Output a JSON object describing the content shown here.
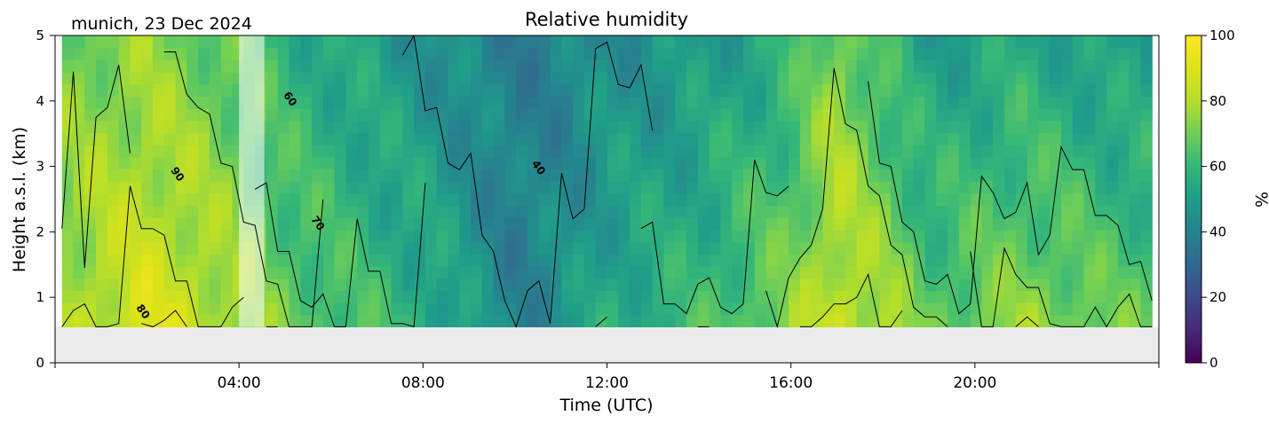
{
  "chart_data": {
    "type": "heatmap",
    "title": "Relative humidity",
    "subtitle": "munich, 23 Dec 2024",
    "xlabel": "Time (UTC)",
    "ylabel": "Height a.s.l. (km)",
    "colorbar_label": "%",
    "x_unit": "hours UTC",
    "xlim": [
      0,
      24
    ],
    "ylim": [
      0,
      5
    ],
    "x_ticks": [
      4,
      8,
      12,
      16,
      20
    ],
    "x_tick_labels": [
      "04:00",
      "08:00",
      "12:00",
      "16:00",
      "20:00"
    ],
    "y_ticks": [
      0,
      1,
      2,
      3,
      4,
      5
    ],
    "y_tick_labels": [
      "0",
      "1",
      "2",
      "3",
      "4",
      "5"
    ],
    "colorbar_ticks": [
      0,
      20,
      40,
      60,
      80,
      100
    ],
    "colorbar_tick_labels": [
      "0",
      "20",
      "40",
      "60",
      "80",
      "100"
    ],
    "colorbar_range": [
      0,
      100
    ],
    "colormap": "viridis",
    "no_data_color": "#ebebeb",
    "data_bottom_km": 0.55,
    "data_start_hour": 0.15,
    "data_end_hour": 23.85,
    "masked_interval_hours": [
      4.0,
      4.55
    ],
    "contour_levels": [
      40,
      60,
      70,
      80,
      90
    ],
    "contour_labels": [
      {
        "text": "90",
        "hour": 2.6,
        "km": 2.85
      },
      {
        "text": "80",
        "hour": 1.85,
        "km": 0.75
      },
      {
        "text": "60",
        "hour": 5.05,
        "km": 4.0
      },
      {
        "text": "70",
        "hour": 5.65,
        "km": 2.1
      },
      {
        "text": "40",
        "hour": 10.45,
        "km": 2.95
      }
    ],
    "humidity_profile": {
      "hours": [
        0,
        1,
        2,
        3,
        4,
        5,
        6,
        7,
        8,
        9,
        10,
        11,
        12,
        13,
        14,
        15,
        16,
        17,
        18,
        19,
        20,
        21,
        22,
        23,
        24
      ],
      "low_km": [
        78,
        84,
        90,
        86,
        78,
        70,
        66,
        62,
        58,
        50,
        40,
        46,
        56,
        58,
        62,
        68,
        74,
        86,
        80,
        68,
        72,
        76,
        74,
        70,
        68
      ],
      "high_km": [
        70,
        72,
        74,
        70,
        66,
        58,
        54,
        50,
        46,
        42,
        38,
        40,
        44,
        46,
        48,
        52,
        58,
        74,
        60,
        50,
        52,
        54,
        52,
        50,
        50
      ]
    }
  }
}
